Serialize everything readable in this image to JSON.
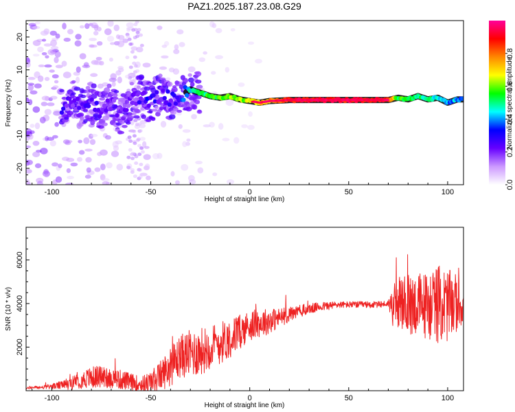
{
  "title": "PAZ1.2025.187.23.08.G29",
  "colors": {
    "snr_line": "#ee2222",
    "track_outline": "#000000",
    "frame": "#000000"
  },
  "chart_data": [
    {
      "type": "heatmap",
      "xlabel": "Height of straight line (km)",
      "ylabel": "Frequency (Hz)",
      "xlim": [
        -113,
        108
      ],
      "ylim": [
        -25,
        25
      ],
      "xticks": [
        -100,
        -50,
        0,
        50,
        100
      ],
      "yticks": [
        -20,
        -10,
        0,
        10,
        20
      ],
      "colorbar": {
        "label": "Normalized spectral amplitude",
        "range": [
          0,
          1
        ],
        "ticks": [
          0.0,
          0.2,
          0.4,
          0.6,
          0.8
        ],
        "colormap": [
          "#ffffff",
          "#cc99ff",
          "#6600ff",
          "#0000ff",
          "#00ffff",
          "#00ff00",
          "#ffff00",
          "#ff8800",
          "#ff0000",
          "#ff0099"
        ]
      },
      "ridge": {
        "x": [
          -95,
          -90,
          -85,
          -80,
          -75,
          -70,
          -65,
          -60,
          -55,
          -50,
          -45,
          -40,
          -35,
          -30,
          -25,
          -20,
          -15,
          -10,
          -5,
          0,
          5,
          10,
          20,
          30,
          40,
          50,
          60,
          70,
          75,
          80,
          85,
          90,
          95,
          100,
          105,
          108
        ],
        "y": [
          -2,
          1,
          -2,
          0,
          -3,
          0,
          -4,
          1,
          2,
          0,
          3,
          1,
          2,
          4,
          3,
          2,
          1.5,
          2,
          1,
          0.5,
          0,
          0.5,
          0.8,
          0.8,
          0.8,
          0.8,
          0.8,
          0.8,
          1.5,
          1,
          2,
          1,
          1.5,
          0,
          1,
          1
        ],
        "amplitude": [
          0.25,
          0.2,
          0.25,
          0.2,
          0.25,
          0.2,
          0.2,
          0.2,
          0.25,
          0.3,
          0.25,
          0.25,
          0.3,
          0.45,
          0.5,
          0.55,
          0.55,
          0.6,
          0.6,
          0.65,
          0.7,
          0.75,
          0.9,
          0.9,
          0.9,
          0.9,
          0.9,
          0.9,
          0.55,
          0.55,
          0.5,
          0.5,
          0.45,
          0.4,
          0.4,
          0.35
        ]
      }
    },
    {
      "type": "line",
      "xlabel": "Height of straight line (km)",
      "ylabel": "SNR (10 * v/v)",
      "xlim": [
        -113,
        108
      ],
      "ylim": [
        0,
        7500
      ],
      "xticks": [
        -100,
        -50,
        0,
        50,
        100
      ],
      "yticks": [
        2000,
        4000,
        6000
      ],
      "series": [
        {
          "x": [
            -113,
            -110,
            -105,
            -100,
            -95,
            -90,
            -85,
            -80,
            -75,
            -70,
            -65,
            -60,
            -55,
            -50,
            -45,
            -40,
            -35,
            -30,
            -25,
            -20,
            -15,
            -10,
            -5,
            0,
            5,
            10,
            15,
            20,
            25,
            30,
            35,
            40,
            45,
            50,
            55,
            60,
            65,
            70,
            72,
            75,
            80,
            85,
            90,
            95,
            100,
            105,
            108
          ],
          "y": [
            100,
            150,
            150,
            200,
            250,
            350,
            500,
            600,
            650,
            600,
            500,
            400,
            300,
            400,
            700,
            1100,
            1600,
            1700,
            1800,
            2000,
            2200,
            2400,
            2700,
            3000,
            3100,
            3200,
            3350,
            3500,
            3650,
            3750,
            3850,
            3900,
            3950,
            3950,
            3950,
            3950,
            3950,
            4000,
            3900,
            4000,
            3950,
            3950,
            3900,
            4000,
            3900,
            4000,
            3900
          ],
          "noise": [
            50,
            60,
            80,
            120,
            200,
            300,
            400,
            500,
            550,
            500,
            450,
            400,
            350,
            500,
            700,
            900,
            1000,
            1100,
            1100,
            1000,
            1000,
            900,
            800,
            700,
            650,
            600,
            450,
            350,
            300,
            250,
            200,
            200,
            150,
            150,
            150,
            150,
            150,
            150,
            900,
            1200,
            1400,
            1500,
            1600,
            1800,
            1700,
            1300,
            800
          ]
        }
      ]
    }
  ]
}
